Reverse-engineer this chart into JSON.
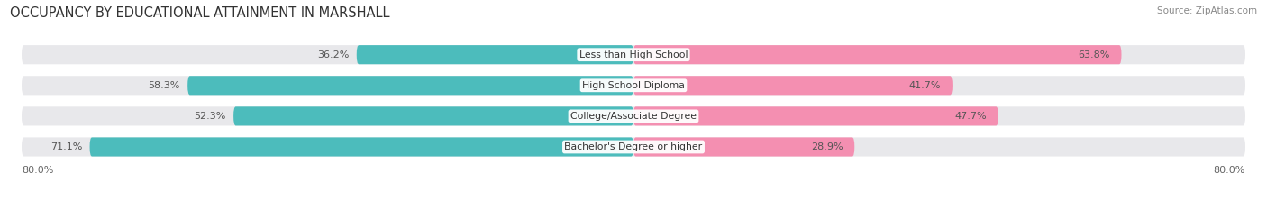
{
  "title": "OCCUPANCY BY EDUCATIONAL ATTAINMENT IN MARSHALL",
  "source": "Source: ZipAtlas.com",
  "categories": [
    "Less than High School",
    "High School Diploma",
    "College/Associate Degree",
    "Bachelor's Degree or higher"
  ],
  "owner_pct": [
    36.2,
    58.3,
    52.3,
    71.1
  ],
  "renter_pct": [
    63.8,
    41.7,
    47.7,
    28.9
  ],
  "owner_color": "#4cbcbc",
  "renter_color": "#f48fb1",
  "bg_bar_color": "#e8e8eb",
  "background_color": "#ffffff",
  "axis_left_label": "80.0%",
  "axis_right_label": "80.0%",
  "title_fontsize": 10.5,
  "bar_label_fontsize": 8.0,
  "cat_label_fontsize": 7.8,
  "legend_fontsize": 8.5,
  "source_fontsize": 7.5,
  "bar_height": 0.62,
  "max_pct": 80.0
}
